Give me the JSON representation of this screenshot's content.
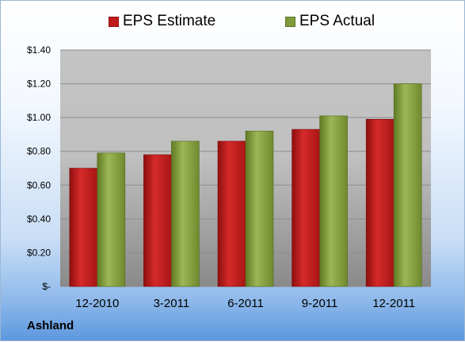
{
  "colors": {
    "estimate": "#c01b1b",
    "actual": "#7f9b3a",
    "plot_bg_top": "#c3c3c3",
    "plot_bg_bottom": "#8a8a8a"
  },
  "chart_data": {
    "type": "bar",
    "categories": [
      "12-2010",
      "3-2011",
      "6-2011",
      "9-2011",
      "12-2011"
    ],
    "series": [
      {
        "name": "EPS Estimate",
        "values": [
          0.7,
          0.78,
          0.86,
          0.93,
          0.99
        ]
      },
      {
        "name": "EPS Actual",
        "values": [
          0.79,
          0.86,
          0.92,
          1.01,
          1.2
        ]
      }
    ],
    "ylim": [
      0,
      1.4
    ],
    "y_ticks": [
      0,
      0.2,
      0.4,
      0.6,
      0.8,
      1.0,
      1.2,
      1.4
    ],
    "y_tick_labels": [
      "$-",
      "$0.20",
      "$0.40",
      "$0.60",
      "$0.80",
      "$1.00",
      "$1.20",
      "$1.40"
    ],
    "legend_position": "top",
    "grid": true
  },
  "footer": {
    "company": "Ashland"
  }
}
